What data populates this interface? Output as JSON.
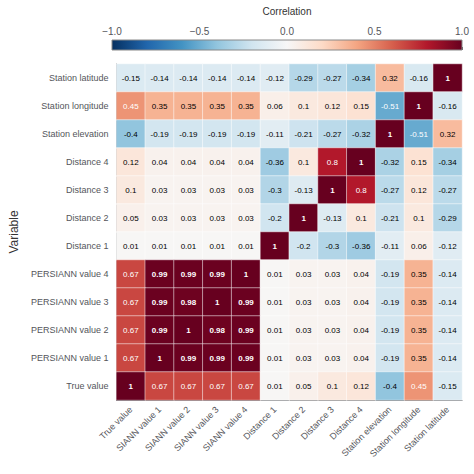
{
  "chart_data": {
    "type": "heatmap",
    "ylabel": "Variable",
    "x_categories": [
      "True value",
      "SIANN value 1",
      "SIANN value 2",
      "SIANN value 3",
      "SIANN value 4",
      "Distance 1",
      "Distance 2",
      "Distance 3",
      "Distance 4",
      "Station elevation",
      "Station longitude",
      "Station latitude"
    ],
    "y_categories": [
      "Station latitude",
      "Station longitude",
      "Station elevation",
      "Distance 4",
      "Distance 3",
      "Distance 2",
      "Distance 1",
      "PERSIANN value 4",
      "PERSIANN value 3",
      "PERSIANN value 2",
      "PERSIANN value 1",
      "True value"
    ],
    "cells": [
      [
        -0.15,
        -0.14,
        -0.14,
        -0.14,
        -0.14,
        -0.12,
        -0.29,
        -0.27,
        -0.34,
        0.32,
        -0.16,
        1.0
      ],
      [
        0.45,
        0.35,
        0.35,
        0.35,
        0.35,
        0.06,
        0.1,
        0.12,
        0.15,
        -0.51,
        1.0,
        -0.16
      ],
      [
        -0.4,
        -0.19,
        -0.19,
        -0.19,
        -0.19,
        -0.11,
        -0.21,
        -0.27,
        -0.32,
        1.0,
        -0.51,
        0.32
      ],
      [
        0.12,
        0.04,
        0.04,
        0.04,
        0.04,
        -0.36,
        0.1,
        0.8,
        1.0,
        -0.32,
        0.15,
        -0.34
      ],
      [
        0.1,
        0.03,
        0.03,
        0.03,
        0.03,
        -0.3,
        -0.13,
        1.0,
        0.8,
        -0.27,
        0.12,
        -0.27
      ],
      [
        0.05,
        0.03,
        0.03,
        0.03,
        0.03,
        -0.2,
        1.0,
        -0.13,
        0.1,
        -0.21,
        0.1,
        -0.29
      ],
      [
        0.01,
        0.01,
        0.01,
        0.01,
        0.01,
        1.0,
        -0.2,
        -0.3,
        -0.36,
        -0.11,
        0.06,
        -0.12
      ],
      [
        0.67,
        0.99,
        0.99,
        0.99,
        1.0,
        0.01,
        0.03,
        0.03,
        0.04,
        -0.19,
        0.35,
        -0.14
      ],
      [
        0.67,
        0.99,
        0.98,
        1.0,
        0.99,
        0.01,
        0.03,
        0.03,
        0.04,
        -0.19,
        0.35,
        -0.14
      ],
      [
        0.67,
        0.99,
        1.0,
        0.98,
        0.99,
        0.01,
        0.03,
        0.03,
        0.04,
        -0.19,
        0.35,
        -0.14
      ],
      [
        0.67,
        1.0,
        0.99,
        0.99,
        0.99,
        0.01,
        0.03,
        0.03,
        0.04,
        -0.19,
        0.35,
        -0.14
      ],
      [
        1.0,
        0.67,
        0.67,
        0.67,
        0.67,
        0.01,
        0.05,
        0.1,
        0.12,
        -0.4,
        0.45,
        -0.15
      ]
    ],
    "data_labels": true,
    "colorbar_label": "Correlation",
    "colorbar_range": [
      -1.0,
      1.0
    ],
    "colorbar_ticks": [
      {
        "value": -1.0,
        "label": "−1.0"
      },
      {
        "value": -0.5,
        "label": "−0.5"
      },
      {
        "value": 0.0,
        "label": "0.0"
      },
      {
        "value": 0.5,
        "label": "0.5"
      },
      {
        "value": 1.0,
        "label": "1.0"
      }
    ]
  }
}
